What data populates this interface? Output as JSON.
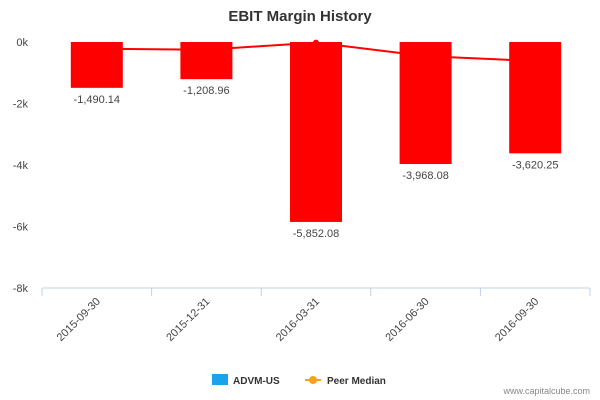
{
  "chart_data": {
    "type": "bar",
    "title": "EBIT Margin History",
    "categories": [
      "2015-09-30",
      "2015-12-31",
      "2016-03-31",
      "2016-06-30",
      "2016-09-30"
    ],
    "series": [
      {
        "name": "ADVM-US",
        "type": "bar",
        "values": [
          -1490.14,
          -1208.96,
          -5852.08,
          -3968.08,
          -3620.25
        ],
        "data_labels": [
          "-1,490.14",
          "-1,208.96",
          "-5,852.08",
          "-3,968.08",
          "-3,620.25"
        ],
        "color": "#ff0000"
      },
      {
        "name": "Peer Median",
        "type": "line",
        "values": [
          -220,
          -250,
          -20,
          -460,
          -620
        ],
        "color": "#ff0000"
      }
    ],
    "ylim": [
      -8000,
      0
    ],
    "yticks": [
      0,
      -2000,
      -4000,
      -6000,
      -8000
    ],
    "ytick_labels": [
      "0k",
      "-2k",
      "-4k",
      "-6k",
      "-8k"
    ],
    "legend": {
      "placement": "bottom-center",
      "items": [
        {
          "label": "ADVM-US",
          "color": "#1aa3e8",
          "marker": "square"
        },
        {
          "label": "Peer Median",
          "color": "#f7a21b",
          "marker": "line-dot"
        }
      ]
    },
    "grid": false
  },
  "credit": "www.capitalcube.com"
}
